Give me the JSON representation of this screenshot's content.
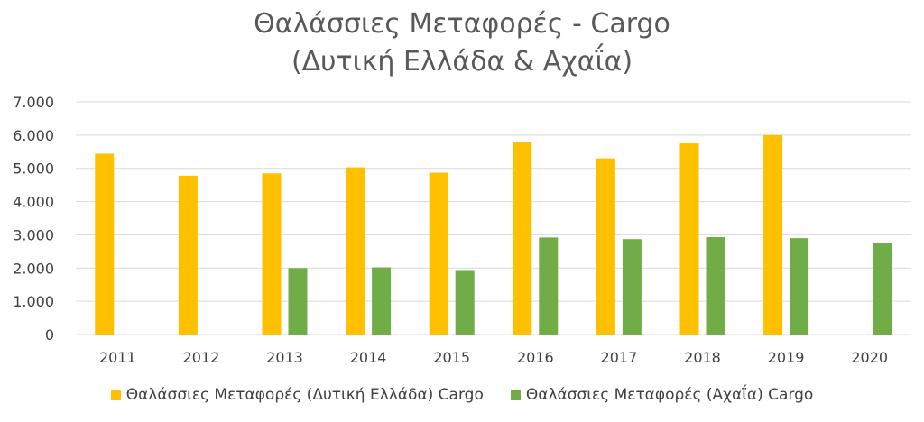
{
  "chart_data": {
    "type": "bar",
    "title_line1": "Θαλάσσιες Μεταφορές - Cargo",
    "title_line2": "(Δυτική Ελλάδα & Αχαΐα)",
    "categories": [
      "2011",
      "2012",
      "2013",
      "2014",
      "2015",
      "2016",
      "2017",
      "2018",
      "2019",
      "2020"
    ],
    "series": [
      {
        "name": "Θαλάσσιες Μεταφορές (Δυτική Ελλάδα) Cargo",
        "color": "#FFC000",
        "values": [
          5440,
          4780,
          4850,
          5030,
          4870,
          5800,
          5300,
          5750,
          6000,
          null
        ]
      },
      {
        "name": "Θαλάσσιες Μεταφορές (Αχαΐα) Cargo",
        "color": "#70AD47",
        "values": [
          null,
          null,
          2000,
          2020,
          1940,
          2920,
          2870,
          2930,
          2900,
          2740
        ]
      }
    ],
    "ylim": [
      0,
      7000
    ],
    "yticks": [
      0,
      1000,
      2000,
      3000,
      4000,
      5000,
      6000,
      7000
    ],
    "ytick_labels": [
      "0",
      "1.000",
      "2.000",
      "3.000",
      "4.000",
      "5.000",
      "6.000",
      "7.000"
    ],
    "grid": true,
    "legend_position": "bottom"
  }
}
